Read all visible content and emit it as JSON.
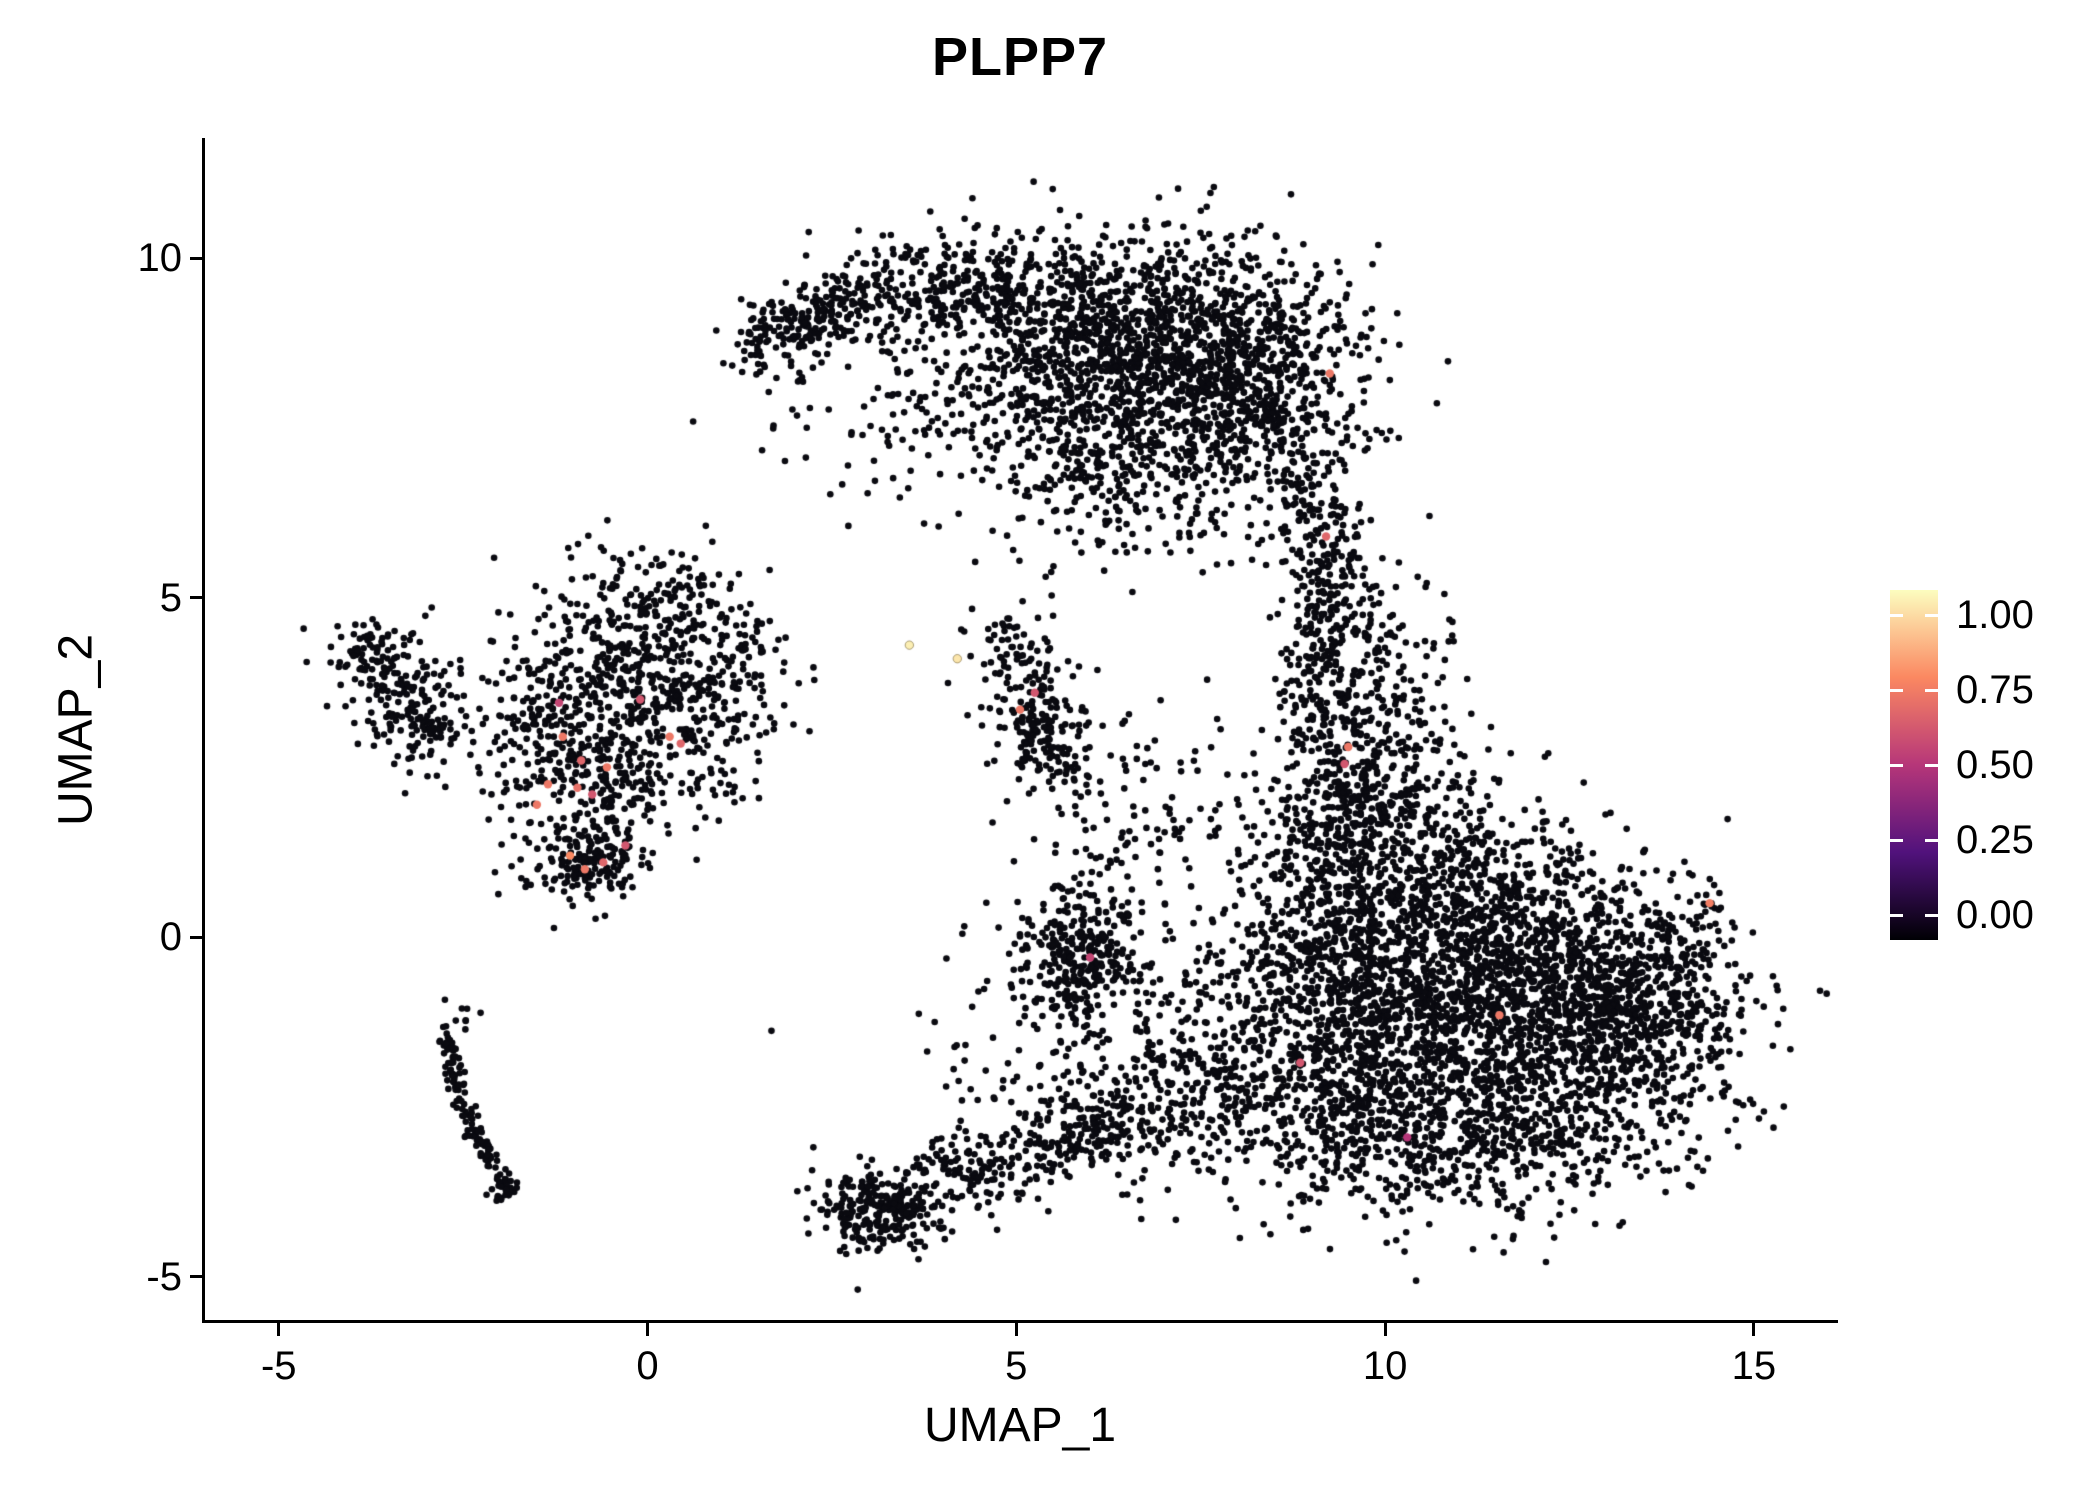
{
  "chart_data": {
    "type": "scatter",
    "title": "PLPP7",
    "xlabel": "UMAP_1",
    "ylabel": "UMAP_2",
    "x_domain": [
      -6.0,
      16.1
    ],
    "y_domain": [
      -5.64,
      11.74
    ],
    "x_ticks": [
      {
        "value": -5,
        "label": "-5"
      },
      {
        "value": 0,
        "label": "0"
      },
      {
        "value": 5,
        "label": "5"
      },
      {
        "value": 10,
        "label": "10"
      },
      {
        "value": 15,
        "label": "15"
      }
    ],
    "y_ticks": [
      {
        "value": -5,
        "label": "-5"
      },
      {
        "value": 0,
        "label": "0"
      },
      {
        "value": 5,
        "label": "5"
      },
      {
        "value": 10,
        "label": "10"
      }
    ],
    "grid": false,
    "background": "#ffffff",
    "point_color_zero": "#0a0a10",
    "point_radius_px": 3.3,
    "highlight_radius_px": 4.2,
    "legend": {
      "position": "right",
      "ticks": [
        {
          "value": 1.0,
          "label": "1.00"
        },
        {
          "value": 0.75,
          "label": "0.75"
        },
        {
          "value": 0.5,
          "label": "0.50"
        },
        {
          "value": 0.25,
          "label": "0.25"
        },
        {
          "value": 0.0,
          "label": "0.00"
        }
      ],
      "gradient_stops": [
        {
          "value": 0.0,
          "color": "#000004"
        },
        {
          "value": 0.25,
          "color": "#51127C"
        },
        {
          "value": 0.5,
          "color": "#B63679"
        },
        {
          "value": 0.75,
          "color": "#FB8861"
        },
        {
          "value": 1.0,
          "color": "#FCFDBF"
        }
      ]
    },
    "seed": 42,
    "clusters": [
      {
        "kind": "line",
        "x1": 1.35,
        "y1": 8.6,
        "x2": 3.1,
        "y2": 9.6,
        "jitter": 0.28,
        "n": 260
      },
      {
        "kind": "gauss",
        "cx": 4.3,
        "cy": 9.55,
        "sx": 0.85,
        "sy": 0.42,
        "n": 300
      },
      {
        "kind": "gauss",
        "cx": 6.8,
        "cy": 8.6,
        "sx": 1.15,
        "sy": 0.85,
        "n": 1400
      },
      {
        "kind": "gauss",
        "cx": 8.3,
        "cy": 7.9,
        "sx": 0.75,
        "sy": 1.0,
        "n": 500
      },
      {
        "kind": "gauss",
        "cx": 6.2,
        "cy": 6.9,
        "sx": 0.85,
        "sy": 0.7,
        "n": 260
      },
      {
        "kind": "gauss",
        "cx": 4.6,
        "cy": 8.2,
        "sx": 1.0,
        "sy": 0.8,
        "n": 150
      },
      {
        "kind": "line",
        "x1": 8.8,
        "y1": 6.6,
        "x2": 9.4,
        "y2": 5.5,
        "jitter": 0.3,
        "n": 110
      },
      {
        "kind": "gauss",
        "cx": 3.2,
        "cy": 7.7,
        "sx": 0.8,
        "sy": 0.55,
        "n": 60
      },
      {
        "kind": "line",
        "x1": 9.35,
        "y1": 5.4,
        "x2": 9.0,
        "y2": 3.2,
        "jitter": 0.33,
        "n": 190
      },
      {
        "kind": "gauss",
        "cx": 9.9,
        "cy": 4.3,
        "sx": 0.5,
        "sy": 0.8,
        "n": 90
      },
      {
        "kind": "gauss",
        "cx": 9.8,
        "cy": 2.55,
        "sx": 0.7,
        "sy": 0.75,
        "n": 340
      },
      {
        "kind": "gauss",
        "cx": 9.4,
        "cy": 0.6,
        "sx": 0.55,
        "sy": 1.1,
        "n": 300
      },
      {
        "kind": "gauss",
        "cx": 10.8,
        "cy": 0.6,
        "sx": 1.1,
        "sy": 0.9,
        "n": 700
      },
      {
        "kind": "gauss",
        "cx": 11.2,
        "cy": -1.3,
        "sx": 1.5,
        "sy": 1.1,
        "n": 1800
      },
      {
        "kind": "gauss",
        "cx": 12.8,
        "cy": -0.8,
        "sx": 0.9,
        "sy": 0.9,
        "n": 600
      },
      {
        "kind": "gauss",
        "cx": 13.9,
        "cy": -0.9,
        "sx": 0.45,
        "sy": 0.8,
        "n": 200
      },
      {
        "kind": "gauss",
        "cx": 10.9,
        "cy": -3.1,
        "sx": 1.3,
        "sy": 0.55,
        "n": 400
      },
      {
        "kind": "gauss",
        "cx": 9.2,
        "cy": -2.2,
        "sx": 0.7,
        "sy": 0.8,
        "n": 300
      },
      {
        "kind": "gauss",
        "cx": 14.38,
        "cy": 0.45,
        "sx": 0.08,
        "sy": 0.08,
        "n": 7
      },
      {
        "kind": "gauss",
        "cx": 8.4,
        "cy": 0.3,
        "sx": 0.5,
        "sy": 1.0,
        "n": 110
      },
      {
        "kind": "gauss",
        "cx": 7.8,
        "cy": -1.4,
        "sx": 0.7,
        "sy": 0.8,
        "n": 120
      },
      {
        "kind": "gauss",
        "cx": -0.35,
        "cy": 3.8,
        "sx": 0.85,
        "sy": 0.7,
        "n": 450
      },
      {
        "kind": "gauss",
        "cx": 0.1,
        "cy": 5.0,
        "sx": 0.55,
        "sy": 0.42,
        "n": 120
      },
      {
        "kind": "gauss",
        "cx": 0.9,
        "cy": 3.4,
        "sx": 0.45,
        "sy": 0.7,
        "n": 150
      },
      {
        "kind": "gauss",
        "cx": -0.6,
        "cy": 2.4,
        "sx": 0.55,
        "sy": 0.6,
        "n": 220
      },
      {
        "kind": "gauss",
        "cx": -0.85,
        "cy": 1.15,
        "sx": 0.4,
        "sy": 0.35,
        "n": 170
      },
      {
        "kind": "gauss",
        "cx": -1.7,
        "cy": 3.1,
        "sx": 0.6,
        "sy": 0.7,
        "n": 90
      },
      {
        "kind": "gauss",
        "cx": 1.4,
        "cy": 4.5,
        "sx": 0.15,
        "sy": 0.12,
        "n": 6
      },
      {
        "kind": "gauss",
        "cx": -3.2,
        "cy": 3.3,
        "sx": 0.35,
        "sy": 0.45,
        "n": 160
      },
      {
        "kind": "gauss",
        "cx": -3.65,
        "cy": 4.2,
        "sx": 0.33,
        "sy": 0.28,
        "n": 90
      },
      {
        "kind": "line",
        "x1": -2.75,
        "y1": -1.35,
        "x2": -2.45,
        "y2": -2.7,
        "jitter": 0.07,
        "n": 70
      },
      {
        "kind": "line",
        "x1": -2.45,
        "y1": -2.7,
        "x2": -1.88,
        "y2": -3.78,
        "jitter": 0.07,
        "n": 60
      },
      {
        "kind": "gauss",
        "cx": -1.95,
        "cy": -3.72,
        "sx": 0.12,
        "sy": 0.12,
        "n": 22
      },
      {
        "kind": "gauss",
        "cx": -2.55,
        "cy": -1.15,
        "sx": 0.18,
        "sy": 0.15,
        "n": 8
      },
      {
        "kind": "gauss",
        "cx": 5.35,
        "cy": 3.2,
        "sx": 0.3,
        "sy": 0.45,
        "n": 170
      },
      {
        "kind": "gauss",
        "cx": 5.0,
        "cy": 4.3,
        "sx": 0.32,
        "sy": 0.3,
        "n": 40
      },
      {
        "kind": "gauss",
        "cx": 4.6,
        "cy": 4.5,
        "sx": 0.28,
        "sy": 0.18,
        "n": 10
      },
      {
        "kind": "line",
        "x1": 5.5,
        "y1": 2.8,
        "x2": 5.95,
        "y2": 2.1,
        "jitter": 0.1,
        "n": 22
      },
      {
        "kind": "gauss",
        "cx": 6.45,
        "cy": 2.9,
        "sx": 0.3,
        "sy": 0.4,
        "n": 14
      },
      {
        "kind": "gauss",
        "cx": 5.85,
        "cy": -0.35,
        "sx": 0.42,
        "sy": 0.5,
        "n": 260
      },
      {
        "kind": "gauss",
        "cx": 5.95,
        "cy": -0.2,
        "sx": 0.8,
        "sy": 0.8,
        "n": 80
      },
      {
        "kind": "gauss",
        "cx": 6.3,
        "cy": 1.0,
        "sx": 0.45,
        "sy": 0.7,
        "n": 55
      },
      {
        "kind": "gauss",
        "cx": 3.15,
        "cy": -4.05,
        "sx": 0.42,
        "sy": 0.3,
        "n": 260
      },
      {
        "kind": "line",
        "x1": 3.6,
        "y1": -3.7,
        "x2": 6.6,
        "y2": -2.7,
        "jitter": 0.3,
        "n": 300
      },
      {
        "kind": "gauss",
        "cx": 7.1,
        "cy": -2.5,
        "sx": 0.7,
        "sy": 0.6,
        "n": 200
      },
      {
        "kind": "gauss",
        "cx": 5.5,
        "cy": -2.1,
        "sx": 0.9,
        "sy": 0.6,
        "n": 80
      },
      {
        "kind": "gauss",
        "cx": 6.8,
        "cy": 1.8,
        "sx": 1.0,
        "sy": 1.0,
        "n": 60
      }
    ],
    "expressing_cells": [
      {
        "x": -1.15,
        "y": 2.95,
        "value": 0.7
      },
      {
        "x": -0.9,
        "y": 2.6,
        "value": 0.65
      },
      {
        "x": -1.35,
        "y": 2.25,
        "value": 0.7
      },
      {
        "x": -0.75,
        "y": 2.1,
        "value": 0.6
      },
      {
        "x": -1.5,
        "y": 1.95,
        "value": 0.7
      },
      {
        "x": -1.05,
        "y": 1.2,
        "value": 0.75
      },
      {
        "x": -0.85,
        "y": 1.0,
        "value": 0.7
      },
      {
        "x": -0.6,
        "y": 1.1,
        "value": 0.65
      },
      {
        "x": -0.3,
        "y": 1.35,
        "value": 0.6
      },
      {
        "x": 0.3,
        "y": 2.95,
        "value": 0.7
      },
      {
        "x": 0.45,
        "y": 2.85,
        "value": 0.65
      },
      {
        "x": -0.1,
        "y": 3.5,
        "value": 0.6
      },
      {
        "x": -0.55,
        "y": 2.5,
        "value": 0.7
      },
      {
        "x": -1.2,
        "y": 3.45,
        "value": 0.55
      },
      {
        "x": -0.95,
        "y": 2.2,
        "value": 0.68
      },
      {
        "x": 5.05,
        "y": 3.35,
        "value": 0.7
      },
      {
        "x": 5.25,
        "y": 3.6,
        "value": 0.6
      },
      {
        "x": 3.55,
        "y": 4.3,
        "value": 0.97
      },
      {
        "x": 4.2,
        "y": 4.1,
        "value": 0.95
      },
      {
        "x": 9.25,
        "y": 8.3,
        "value": 0.7
      },
      {
        "x": 9.2,
        "y": 5.9,
        "value": 0.65
      },
      {
        "x": 9.5,
        "y": 2.8,
        "value": 0.7
      },
      {
        "x": 9.45,
        "y": 2.55,
        "value": 0.6
      },
      {
        "x": 14.4,
        "y": 0.5,
        "value": 0.72
      },
      {
        "x": 11.55,
        "y": -1.15,
        "value": 0.7
      },
      {
        "x": 8.85,
        "y": -1.85,
        "value": 0.6
      },
      {
        "x": 6.0,
        "y": -0.3,
        "value": 0.55
      },
      {
        "x": 10.3,
        "y": -2.95,
        "value": 0.5
      }
    ]
  }
}
